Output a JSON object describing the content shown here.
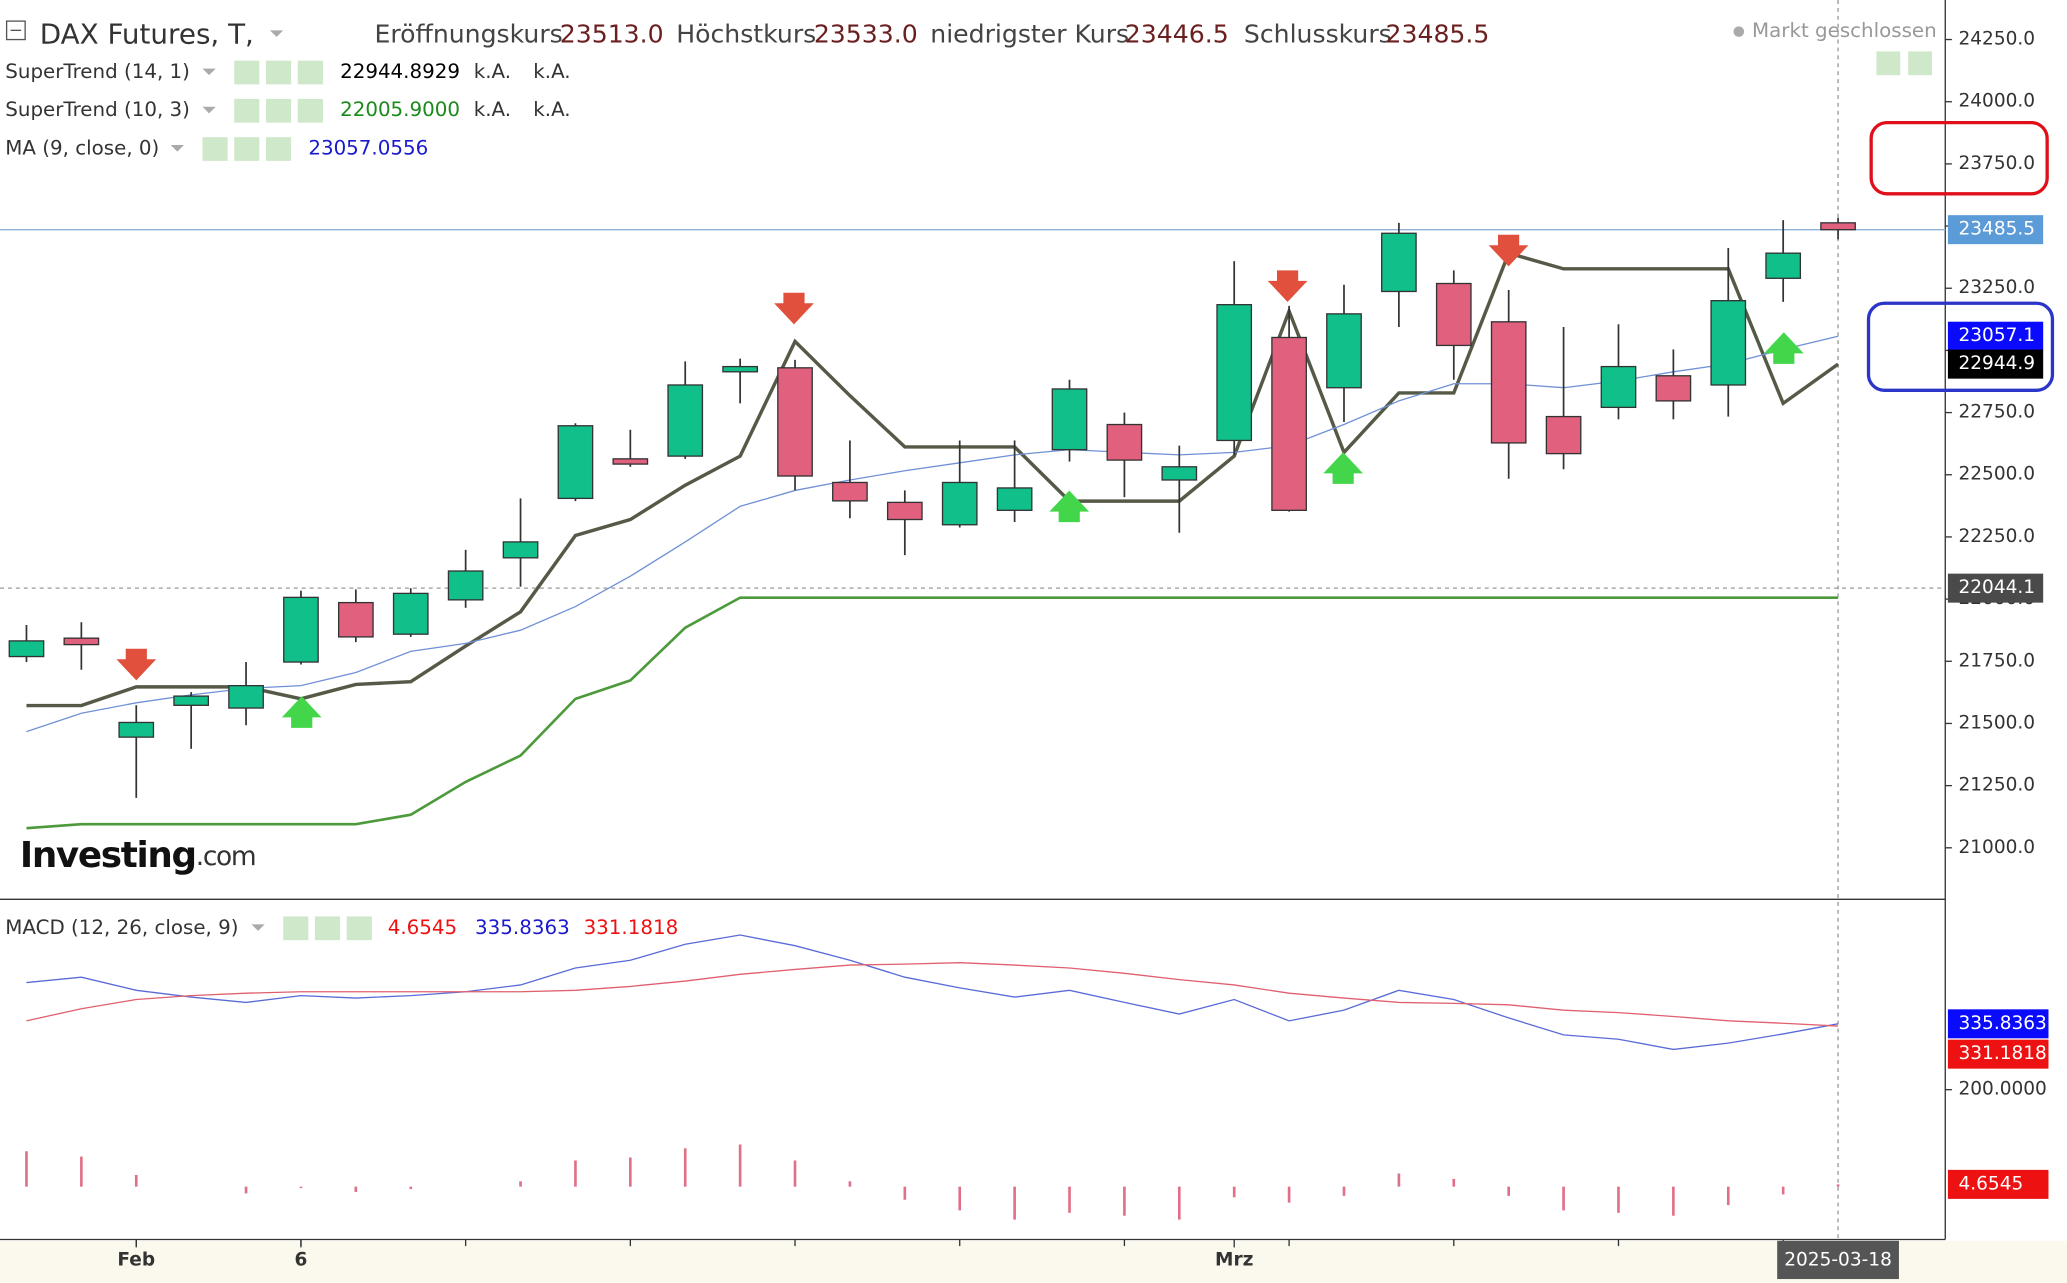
{
  "header": {
    "title": "DAX Futures, T,",
    "status": "Markt geschlossen",
    "logo": "Investing",
    "logo_suffix": ".com",
    "stats": [
      {
        "label": "Eröffnungskurs",
        "value": "23513.0"
      },
      {
        "label": "Höchstkurs",
        "value": "23533.0"
      },
      {
        "label": "niedrigster Kurs",
        "value": "23446.5"
      },
      {
        "label": "Schlusskurs",
        "value": "23485.5"
      }
    ]
  },
  "chart_data": [
    {
      "type": "candlestick",
      "categories": [
        null,
        null,
        "Feb",
        null,
        null,
        "6",
        null,
        null,
        null,
        null,
        null,
        null,
        null,
        null,
        null,
        null,
        null,
        null,
        null,
        null,
        null,
        null,
        "Mrz",
        null,
        null,
        null,
        null,
        null,
        null,
        null,
        null,
        null,
        null,
        "2025-03-18"
      ],
      "open": [
        21769,
        21843,
        21445,
        21573,
        21562,
        21747,
        21986,
        21859,
        21997,
        22166,
        22405,
        22564,
        22575,
        22914,
        22930,
        22469,
        22389,
        22299,
        22357,
        22601,
        22702,
        22479,
        22638,
        23052,
        22850,
        23237,
        23269,
        23115,
        22734,
        22771,
        22898,
        22861,
        23290,
        23513
      ],
      "high": [
        21896,
        21907,
        21573,
        21626,
        21747,
        22034,
        22039,
        22044,
        22198,
        22405,
        22707,
        22681,
        22956,
        22967,
        22962,
        22638,
        22437,
        22638,
        22638,
        22882,
        22750,
        22617,
        23359,
        23179,
        23264,
        23513,
        23322,
        23243,
        23094,
        23105,
        23004,
        23412,
        23524,
        23533
      ],
      "low": [
        21747,
        21716,
        21201,
        21398,
        21493,
        21737,
        21827,
        21848,
        21965,
        22050,
        22394,
        22532,
        22564,
        22787,
        22437,
        22325,
        22177,
        22288,
        22310,
        22553,
        22410,
        22267,
        22580,
        22352,
        22712,
        23094,
        22882,
        22484,
        22522,
        22723,
        22723,
        22734,
        23195,
        23446.5
      ],
      "close": [
        21832,
        21817,
        21504,
        21610,
        21652,
        22007,
        21848,
        22023,
        22113,
        22230,
        22697,
        22543,
        22861,
        22935,
        22495,
        22395,
        22320,
        22469,
        22447,
        22845,
        22559,
        22532,
        23184,
        22357,
        23147,
        23471,
        23020,
        22628,
        22585,
        22935,
        22797,
        23200,
        23391,
        23485.5
      ],
      "up_color": "#10bf8a",
      "down_color": "#e0607e",
      "series": [
        {
          "name": "SuperTrend (14, 1)",
          "color": "#555a47",
          "value_label": "22944.8929",
          "value_color": "#000000",
          "extra": [
            "k.A.",
            "k.A."
          ],
          "values": [
            21572,
            21572,
            21647,
            21647,
            21647,
            21599,
            21657,
            21668,
            21811,
            21949,
            22256,
            22320,
            22458,
            22575,
            23036,
            22818,
            22612,
            22612,
            22612,
            22394,
            22394,
            22394,
            22575,
            23158,
            22590,
            22829,
            22829,
            23391,
            23328,
            23328,
            23328,
            23328,
            22787,
            22944.8929
          ]
        },
        {
          "name": "SuperTrend (10, 3)",
          "color": "#4c9a3c",
          "value_label": "22005.9000",
          "value_color": "#1a8a1a",
          "extra": [
            "k.A.",
            "k.A."
          ],
          "values": [
            21079,
            21095,
            21095,
            21095,
            21095,
            21095,
            21095,
            21133,
            21265,
            21371,
            21599,
            21673,
            21885,
            22005.9,
            22005.9,
            22005.9,
            22005.9,
            22005.9,
            22005.9,
            22005.9,
            22005.9,
            22005.9,
            22005.9,
            22005.9,
            22005.9,
            22005.9,
            22005.9,
            22005.9,
            22005.9,
            22005.9,
            22005.9,
            22005.9,
            22005.9,
            22005.9
          ]
        },
        {
          "name": "MA (9, close, 0)",
          "color": "#7091d6",
          "value_label": "23057.0556",
          "value_color": "#1a1acc",
          "extra": [],
          "values": [
            21467,
            21541,
            21583,
            21615,
            21641,
            21652,
            21705,
            21790,
            21822,
            21875,
            21970,
            22092,
            22230,
            22373,
            22437,
            22479,
            22516,
            22548,
            22580,
            22601,
            22590,
            22580,
            22590,
            22617,
            22702,
            22797,
            22866,
            22866,
            22850,
            22877,
            22914,
            22946,
            23004,
            23057.0556
          ]
        }
      ],
      "ylim": [
        20793,
        24409
      ],
      "yticks": [
        {
          "value": 21000,
          "label": "21000.0"
        },
        {
          "value": 21250,
          "label": "21250.0"
        },
        {
          "value": 21500,
          "label": "21500.0"
        },
        {
          "value": 21750,
          "label": "21750.0"
        },
        {
          "value": 22000,
          "label": "22000.0"
        },
        {
          "value": 22250,
          "label": "22250.0"
        },
        {
          "value": 22500,
          "label": "22500.0"
        },
        {
          "value": 22750,
          "label": "22750.0"
        },
        {
          "value": 23000,
          "label": "23000.0"
        },
        {
          "value": 23250,
          "label": "23250.0"
        },
        {
          "value": 23500,
          "label": "23500.0"
        },
        {
          "value": 23750,
          "label": "23750.0"
        },
        {
          "value": 24000,
          "label": "24000.0"
        },
        {
          "value": 24250,
          "label": "24250.0"
        }
      ],
      "price_markers": [
        {
          "value": 23485.5,
          "label": "23485.5",
          "color": "#5b9bd8"
        },
        {
          "value": 23057.1,
          "label": "23057.1",
          "color": "#0a0aff"
        },
        {
          "value": 22944.9,
          "label": "22944.9",
          "color": "#000000"
        },
        {
          "value": 22044.1,
          "label": "22044.1",
          "color": "#4a4a4a"
        }
      ]
    },
    {
      "type": "macd",
      "title": "MACD (12, 26, close, 9)",
      "value_labels": [
        "4.6545",
        "335.8363",
        "331.1818"
      ],
      "histogram": {
        "color": "#e07088",
        "values": [
          73,
          62,
          24,
          0,
          -14,
          -3,
          -11,
          -5,
          0,
          11,
          54,
          60,
          79,
          87,
          54,
          11,
          -27,
          -49,
          -68,
          -54,
          -60,
          -68,
          -22,
          -33,
          -19,
          27,
          16,
          -19,
          -49,
          -54,
          -60,
          -38,
          -16,
          4.6545
        ]
      },
      "series": [
        {
          "color": "#5a6bd8",
          "values": [
            421,
            432,
            405,
            391,
            380,
            394,
            389,
            394,
            402,
            416,
            451,
            467,
            500,
            519,
            497,
            467,
            432,
            410,
            391,
            405,
            380,
            356,
            386,
            342,
            364,
            405,
            386,
            348,
            313,
            304,
            283,
            296,
            315,
            335.8363
          ]
        },
        {
          "color": "#e06070",
          "values": [
            342,
            367,
            386,
            394,
            399,
            402,
            402,
            402,
            402,
            402,
            405,
            413,
            424,
            438,
            448,
            457,
            459,
            462,
            457,
            451,
            440,
            427,
            416,
            399,
            389,
            380,
            378,
            375,
            364,
            359,
            351,
            342,
            337,
            331.1818
          ]
        }
      ],
      "ylim": [
        -109,
        590
      ],
      "yticks": [
        {
          "value": 200,
          "label": "200.0000"
        }
      ],
      "markers": [
        {
          "value": 335.8363,
          "label": "335.8363",
          "color": "#0a0aff"
        },
        {
          "value": 331.1818,
          "label": "331.1818",
          "color": "#ee1111"
        },
        {
          "value": 4.6545,
          "label": "4.6545",
          "color": "#ee1111"
        }
      ]
    }
  ]
}
